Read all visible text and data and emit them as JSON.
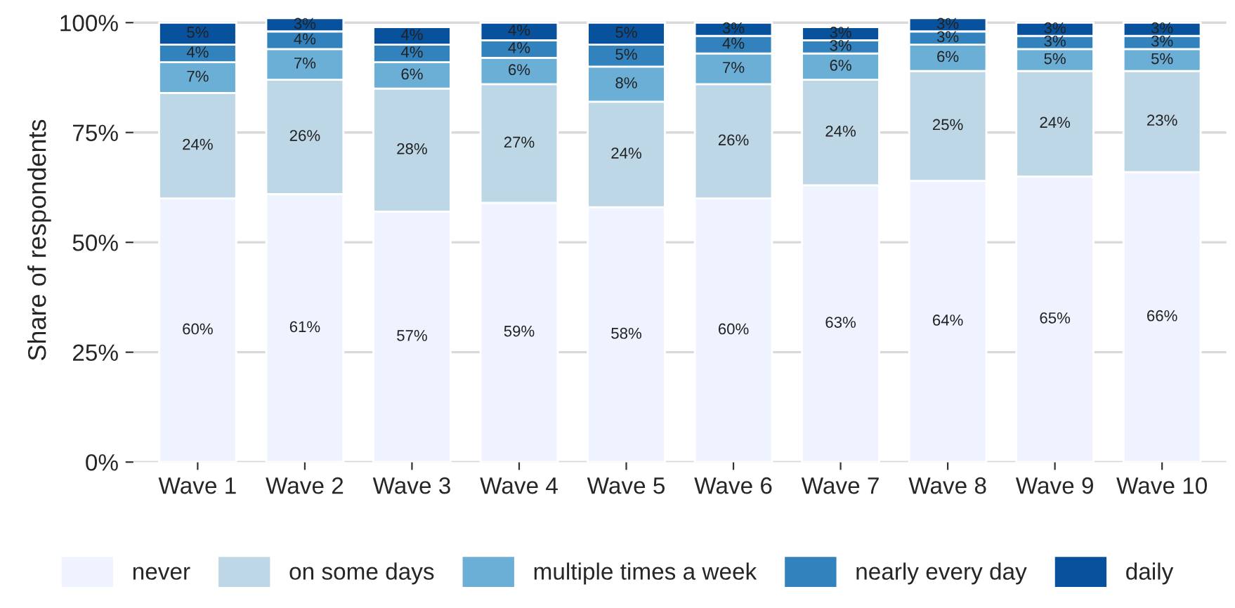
{
  "chart_data": {
    "type": "bar",
    "stacked": true,
    "ylabel": "Share of respondents",
    "categories": [
      "Wave 1",
      "Wave 2",
      "Wave 3",
      "Wave 4",
      "Wave 5",
      "Wave 6",
      "Wave 7",
      "Wave 8",
      "Wave 9",
      "Wave 10"
    ],
    "series": [
      {
        "name": "never",
        "color": "#eff3ff",
        "values": [
          60,
          61,
          57,
          59,
          58,
          60,
          63,
          64,
          65,
          66
        ],
        "value_labels": [
          "60%",
          "61%",
          "57%",
          "59%",
          "58%",
          "60%",
          "63%",
          "64%",
          "65%",
          "66%"
        ]
      },
      {
        "name": "on some days",
        "color": "#bdd7e7",
        "values": [
          24,
          26,
          28,
          27,
          24,
          26,
          24,
          25,
          24,
          23
        ],
        "value_labels": [
          "24%",
          "26%",
          "28%",
          "27%",
          "24%",
          "26%",
          "24%",
          "25%",
          "24%",
          "23%"
        ]
      },
      {
        "name": "multiple times a week",
        "color": "#6baed6",
        "values": [
          7,
          7,
          6,
          6,
          8,
          7,
          6,
          6,
          5,
          5
        ],
        "value_labels": [
          "7%",
          "7%",
          "6%",
          "6%",
          "8%",
          "7%",
          "6%",
          "6%",
          "5%",
          "5%"
        ]
      },
      {
        "name": "nearly every day",
        "color": "#3182bd",
        "values": [
          4,
          4,
          4,
          4,
          5,
          4,
          3,
          3,
          3,
          3
        ],
        "value_labels": [
          "4%",
          "4%",
          "4%",
          "4%",
          "5%",
          "4%",
          "3%",
          "3%",
          "3%",
          "3%"
        ]
      },
      {
        "name": "daily",
        "color": "#08519c",
        "values": [
          5,
          3,
          4,
          4,
          5,
          3,
          3,
          3,
          3,
          3
        ],
        "value_labels": [
          "5%",
          "3%",
          "4%",
          "4%",
          "5%",
          "3%",
          "3%",
          "3%",
          "3%",
          "3%"
        ]
      }
    ],
    "ylim": [
      0,
      101
    ],
    "yticks": [
      {
        "value": 0,
        "label": "0%"
      },
      {
        "value": 25,
        "label": "25%"
      },
      {
        "value": 50,
        "label": "50%"
      },
      {
        "value": 75,
        "label": "75%"
      },
      {
        "value": 100,
        "label": "100%"
      }
    ],
    "grid": "y",
    "legend": "bottom"
  }
}
